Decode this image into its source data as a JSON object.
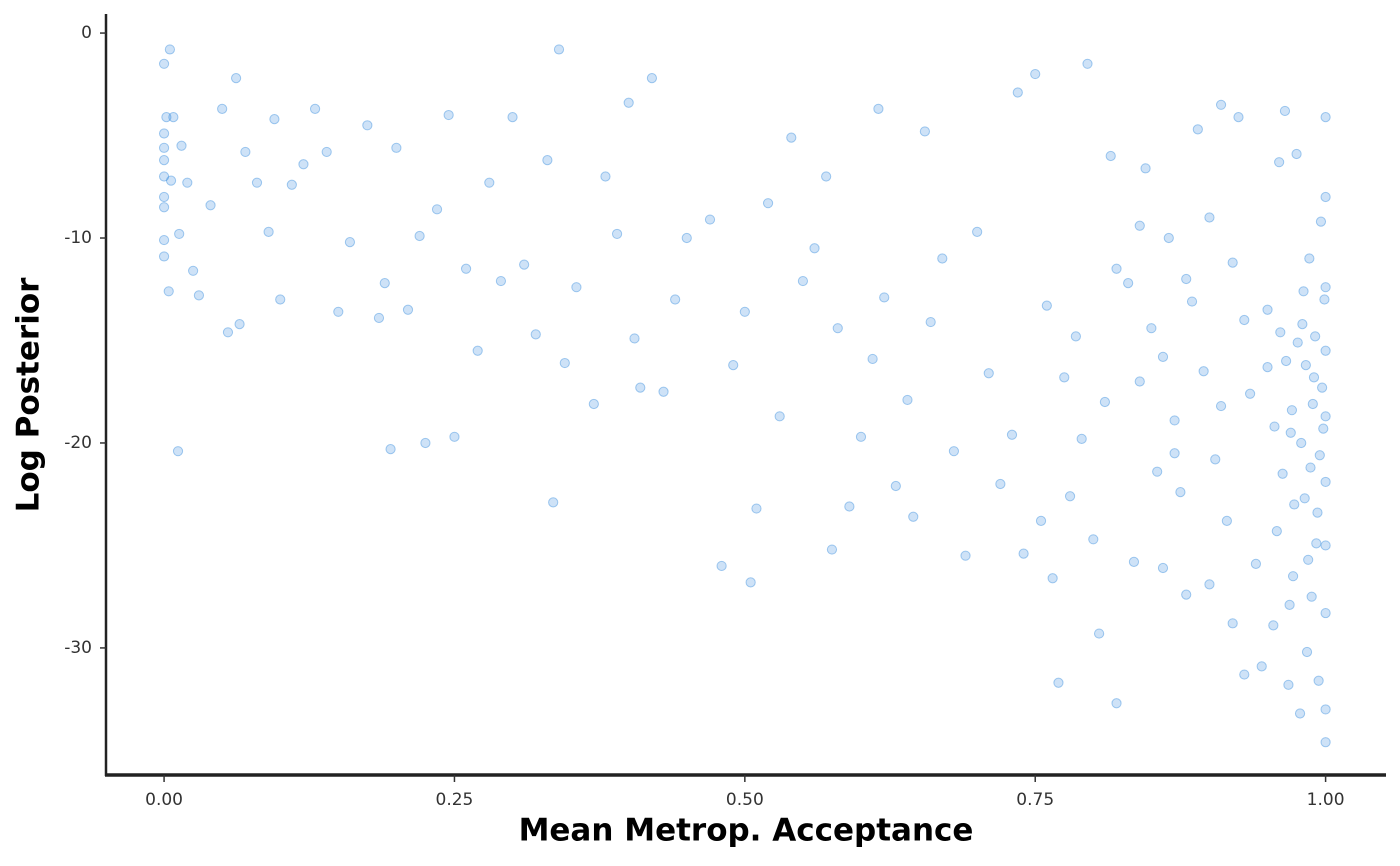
{
  "chart_data": {
    "type": "scatter",
    "x_label": "Mean Metrop. Acceptance",
    "y_label": "Log Posterior",
    "color": "#3a8dde",
    "xlim": [
      -0.05,
      1.052
    ],
    "ylim": [
      -36.2,
      0.93
    ],
    "xticks": [
      {
        "value": 0,
        "label": "0.00"
      },
      {
        "value": 0.25,
        "label": "0.25"
      },
      {
        "value": 0.5,
        "label": "0.50"
      },
      {
        "value": 0.75,
        "label": "0.75"
      },
      {
        "value": 1,
        "label": "1.00"
      }
    ],
    "yticks": [
      0,
      -10,
      -20,
      -30
    ],
    "x": [
      0,
      0,
      0,
      0,
      0,
      0,
      0,
      0,
      0,
      0.002,
      0.005,
      0.008,
      0.004,
      0.012,
      0.015,
      0.02,
      0.025,
      0.03,
      0.006,
      0.013,
      0.04,
      0.05,
      0.055,
      0.062,
      0.065,
      0.07,
      0.08,
      0.09,
      0.095,
      0.1,
      0.11,
      0.12,
      0.13,
      0.14,
      0.15,
      0.16,
      0.175,
      0.185,
      0.19,
      0.195,
      0.2,
      0.21,
      0.22,
      0.225,
      0.235,
      0.245,
      0.25,
      0.26,
      0.27,
      0.28,
      0.29,
      0.3,
      0.31,
      0.32,
      0.33,
      0.335,
      0.34,
      0.345,
      0.355,
      0.37,
      0.38,
      0.39,
      0.4,
      0.405,
      0.41,
      0.42,
      0.43,
      0.44,
      0.45,
      0.47,
      0.48,
      0.49,
      0.5,
      0.505,
      0.51,
      0.52,
      0.53,
      0.54,
      0.55,
      0.56,
      0.57,
      0.575,
      0.58,
      0.59,
      0.6,
      0.61,
      0.615,
      0.62,
      0.63,
      0.64,
      0.645,
      0.655,
      0.66,
      0.67,
      0.68,
      0.69,
      0.7,
      0.71,
      0.72,
      0.73,
      0.735,
      0.74,
      0.75,
      0.755,
      0.76,
      0.765,
      0.77,
      0.775,
      0.78,
      0.785,
      0.79,
      0.795,
      0.8,
      0.805,
      0.81,
      0.815,
      0.82,
      0.83,
      0.835,
      0.84,
      0.845,
      0.85,
      0.855,
      0.86,
      0.865,
      0.87,
      0.875,
      0.88,
      0.885,
      0.89,
      0.895,
      0.9,
      0.905,
      0.91,
      0.915,
      0.92,
      0.925,
      0.93,
      0.935,
      0.94,
      0.945,
      0.95,
      0.955,
      0.96,
      0.965,
      0.968,
      0.97,
      0.972,
      0.975,
      0.978,
      0.98,
      0.982,
      0.984,
      0.986,
      0.988,
      0.99,
      0.992,
      0.994,
      0.996,
      0.998,
      1,
      1,
      1,
      1,
      1,
      1,
      1,
      1,
      1,
      1,
      0.999,
      0.997,
      0.995,
      0.993,
      0.991,
      0.989,
      0.987,
      0.985,
      0.983,
      0.981,
      0.979,
      0.976,
      0.973,
      0.971,
      0.969,
      0.966,
      0.963,
      0.961,
      0.958,
      0.956,
      0.9,
      0.88,
      0.86,
      0.84,
      0.82,
      0.93,
      0.91,
      0.87,
      0.95,
      0.92
    ],
    "y": [
      -1.5,
      -4.9,
      -5.6,
      -6.2,
      -7.0,
      -8.0,
      -8.5,
      -10.1,
      -10.9,
      -4.1,
      -0.8,
      -4.1,
      -12.6,
      -20.4,
      -5.5,
      -7.3,
      -11.6,
      -12.8,
      -7.2,
      -9.8,
      -8.4,
      -3.7,
      -14.6,
      -2.2,
      -14.2,
      -5.8,
      -7.3,
      -9.7,
      -4.2,
      -13.0,
      -7.4,
      -6.4,
      -3.7,
      -5.8,
      -13.6,
      -10.2,
      -4.5,
      -13.9,
      -12.2,
      -20.3,
      -5.6,
      -13.5,
      -9.9,
      -20.0,
      -8.6,
      -4.0,
      -19.7,
      -11.5,
      -15.5,
      -7.3,
      -12.1,
      -4.1,
      -11.3,
      -14.7,
      -6.2,
      -22.9,
      -0.8,
      -16.1,
      -12.4,
      -18.1,
      -7.0,
      -9.8,
      -3.4,
      -14.9,
      -17.3,
      -2.2,
      -17.5,
      -13.0,
      -10.0,
      -9.1,
      -26.0,
      -16.2,
      -13.6,
      -26.8,
      -23.2,
      -8.3,
      -18.7,
      -5.1,
      -12.1,
      -10.5,
      -7.0,
      -25.2,
      -14.4,
      -23.1,
      -19.7,
      -15.9,
      -3.7,
      -12.9,
      -22.1,
      -17.9,
      -23.6,
      -4.8,
      -14.1,
      -11.0,
      -20.4,
      -25.5,
      -9.7,
      -16.6,
      -22.0,
      -19.6,
      -2.9,
      -25.4,
      -2.0,
      -23.8,
      -13.3,
      -26.6,
      -31.7,
      -16.8,
      -22.6,
      -14.8,
      -19.8,
      -1.5,
      -24.7,
      -29.3,
      -18.0,
      -6.0,
      -32.7,
      -12.2,
      -25.8,
      -17.0,
      -6.6,
      -14.4,
      -21.4,
      -26.1,
      -10.0,
      -18.9,
      -22.4,
      -27.4,
      -13.1,
      -4.7,
      -16.5,
      -26.9,
      -20.8,
      -3.5,
      -23.8,
      -28.8,
      -4.1,
      -31.3,
      -17.6,
      -25.9,
      -30.9,
      -13.5,
      -28.9,
      -6.3,
      -3.8,
      -31.8,
      -19.5,
      -26.5,
      -5.9,
      -33.2,
      -14.2,
      -22.7,
      -30.2,
      -11.0,
      -27.5,
      -16.8,
      -24.9,
      -31.6,
      -9.2,
      -19.3,
      -4.1,
      -8.0,
      -12.4,
      -15.5,
      -18.7,
      -21.9,
      -25.0,
      -28.3,
      -33.0,
      -34.6,
      -13.0,
      -17.3,
      -20.6,
      -23.4,
      -14.8,
      -18.1,
      -21.2,
      -25.7,
      -16.2,
      -12.6,
      -20.0,
      -15.1,
      -23.0,
      -18.4,
      -27.9,
      -16.0,
      -21.5,
      -14.6,
      -24.3,
      -19.2,
      -9.0,
      -12.0,
      -15.8,
      -9.4,
      -11.5,
      -14.0,
      -18.2,
      -20.5,
      -16.3,
      -11.2
    ]
  }
}
